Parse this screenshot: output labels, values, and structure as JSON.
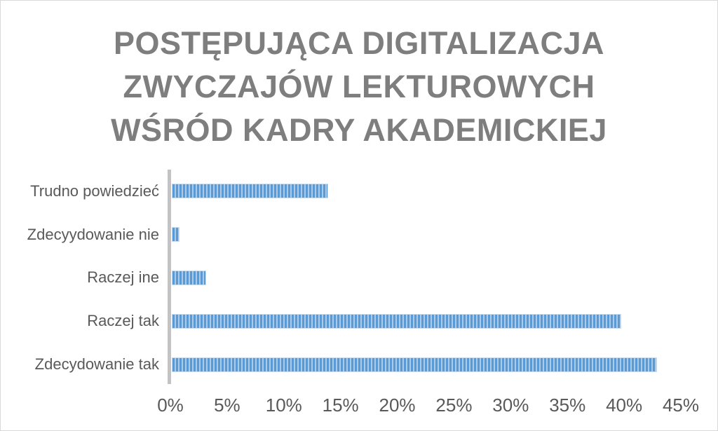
{
  "chart_data": {
    "type": "bar",
    "orientation": "horizontal",
    "title": "POSTĘPUJĄCA DIGITALIZACJA ZWYCZAJÓW LEKTUROWYCH WŚRÓD KADRY AKADEMICKIEJ",
    "title_lines": [
      "POSTĘPUJĄCA DIGITALIZACJA",
      "ZWYCZAJÓW LEKTUROWYCH",
      "WŚRÓD KADRY AKADEMICKIEJ"
    ],
    "categories": [
      "Trudno powiedzieć",
      "Zdecyydowanie nie",
      "Raczej ine",
      "Raczej tak",
      "Zdecydowanie tak"
    ],
    "values": [
      13.8,
      0.7,
      3,
      39.6,
      42.8
    ],
    "unit": "%",
    "xlabel": "",
    "ylabel": "",
    "xlim": [
      0,
      45
    ],
    "x_tick_step": 5,
    "x_tick_labels": [
      "0%",
      "5%",
      "10%",
      "15%",
      "20%",
      "25%",
      "30%",
      "35%",
      "40%",
      "45%"
    ],
    "grid": false,
    "legend": "none",
    "bar_fill_style": "vertical-stripes",
    "colors": {
      "bar_stripe_dark": "#5b9bd5",
      "bar_stripe_light": "#abcbe9",
      "bar_border": "#c9ddf1",
      "title_text": "#7e7e7e",
      "axis_text": "#595959",
      "axis_line": "#c3c3c3",
      "background": "#ffffff",
      "canvas_border": "#d9d9d9"
    }
  }
}
